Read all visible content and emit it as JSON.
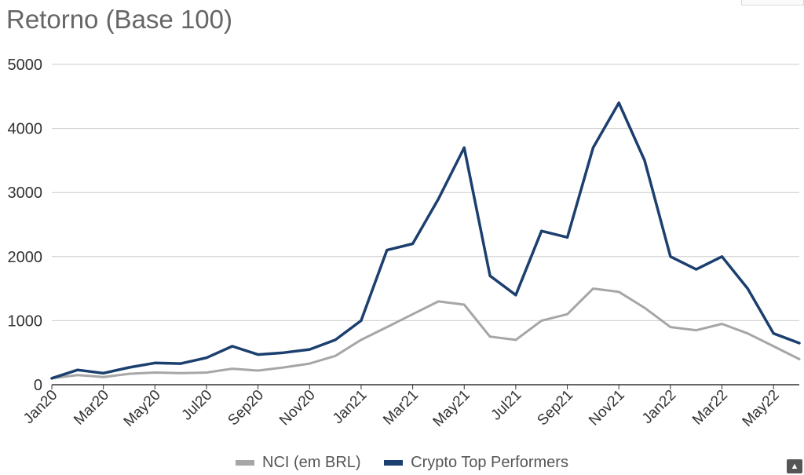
{
  "chart_data": {
    "type": "line",
    "title": "Retorno (Base 100)",
    "xlabel": "",
    "ylabel": "",
    "ylim": [
      0,
      5000
    ],
    "yticks": [
      0,
      1000,
      2000,
      3000,
      4000,
      5000
    ],
    "xtick_labels": [
      "Jan20",
      "Mar20",
      "May20",
      "Jul20",
      "Sep20",
      "Nov20",
      "Jan21",
      "Mar21",
      "May21",
      "Jul21",
      "Sep21",
      "Nov21",
      "Jan22",
      "Mar22",
      "May22"
    ],
    "grid": true,
    "legend_position": "bottom",
    "x": [
      "Jan20",
      "Feb20",
      "Mar20",
      "Apr20",
      "May20",
      "Jun20",
      "Jul20",
      "Aug20",
      "Sep20",
      "Oct20",
      "Nov20",
      "Dec20",
      "Jan21",
      "Feb21",
      "Mar21",
      "Apr21",
      "May21",
      "Jun21",
      "Jul21",
      "Aug21",
      "Sep21",
      "Oct21",
      "Nov21",
      "Dec21",
      "Jan22",
      "Feb22",
      "Mar22",
      "Apr22",
      "May22",
      "Jun22"
    ],
    "series": [
      {
        "name": "NCI (em BRL)",
        "color": "#a6a6a6",
        "values": [
          100,
          150,
          120,
          170,
          190,
          180,
          190,
          250,
          220,
          270,
          330,
          450,
          700,
          900,
          1100,
          1300,
          1250,
          750,
          700,
          1000,
          1100,
          1500,
          1450,
          1200,
          900,
          850,
          950,
          800,
          600,
          400
        ]
      },
      {
        "name": "Crypto Top Performers",
        "color": "#1b3f6e",
        "values": [
          100,
          230,
          180,
          270,
          340,
          330,
          420,
          600,
          470,
          500,
          550,
          700,
          1000,
          2100,
          2200,
          2900,
          3700,
          1700,
          1400,
          2400,
          2300,
          3700,
          4400,
          3500,
          2000,
          1800,
          2000,
          1500,
          800,
          650
        ]
      }
    ]
  }
}
